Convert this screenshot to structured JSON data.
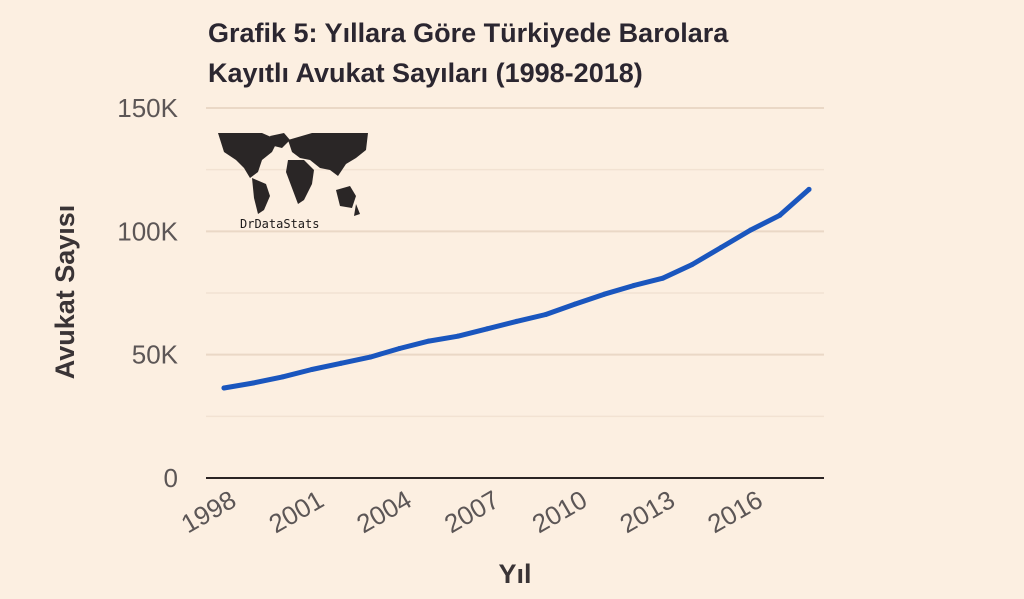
{
  "chart_data": {
    "type": "line",
    "title": [
      "Grafik 5: Yıllara Göre Türkiyede Barolara",
      "Kayıtlı Avukat Sayıları (1998-2018)"
    ],
    "xlabel": "Yıl",
    "ylabel": "Avukat Sayısı",
    "xlim": [
      1998,
      2018
    ],
    "ylim": [
      0,
      150000
    ],
    "x_ticks": [
      1998,
      2001,
      2004,
      2007,
      2010,
      2013,
      2016
    ],
    "x_tick_labels": [
      "1998",
      "2001",
      "2004",
      "2007",
      "2010",
      "2013",
      "2016"
    ],
    "y_ticks": [
      0,
      50000,
      100000,
      150000
    ],
    "y_tick_labels": [
      "0",
      "50K",
      "100K",
      "150K"
    ],
    "grid": true,
    "series": [
      {
        "color": "#1a56be",
        "x": [
          1998,
          1999,
          2000,
          2001,
          2002,
          2003,
          2004,
          2005,
          2006,
          2007,
          2008,
          2009,
          2010,
          2011,
          2012,
          2013,
          2014,
          2015,
          2016,
          2017,
          2018
        ],
        "values": [
          36500,
          38500,
          41000,
          44000,
          46500,
          49000,
          52500,
          55500,
          57500,
          60500,
          63500,
          66300,
          70500,
          74500,
          78000,
          81000,
          86500,
          93500,
          100500,
          106500,
          117000
        ]
      }
    ]
  },
  "logo": {
    "text": "DrDataStats",
    "icon": "world-map-icon"
  }
}
